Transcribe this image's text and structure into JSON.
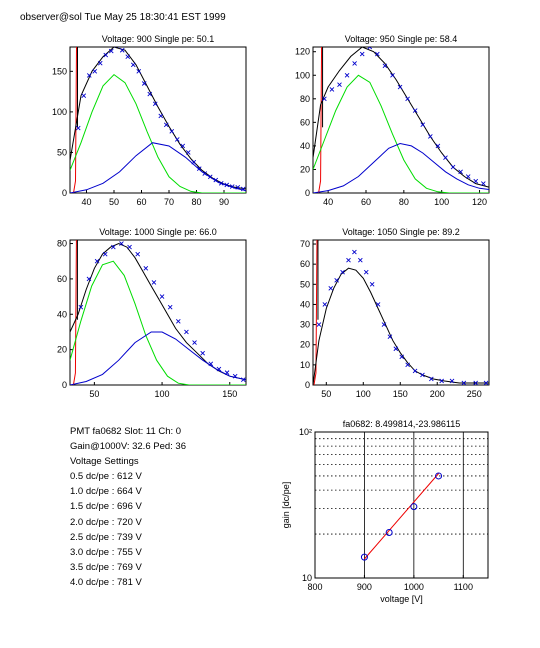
{
  "header": {
    "title": "observer@sol  Tue May 25 18:30:41 EST 1999"
  },
  "colors": {
    "fit": "#000000",
    "gauss": "#00dd00",
    "tail": "#0000cc",
    "ped": "#ee0000",
    "data": "#0000cc",
    "gainline": "#ee0000",
    "gainpoint": "#0000cc"
  },
  "info": {
    "pmt_line": "PMT fa0682 Slot: 11 Ch: 0",
    "gain_line": "Gain@1000V: 32.6 Ped: 36",
    "settings_title": "Voltage Settings",
    "settings": [
      "0.5 dc/pe : 612 V",
      "1.0 dc/pe : 664 V",
      "1.5 dc/pe : 696 V",
      "2.0 dc/pe : 720 V",
      "2.5 dc/pe : 739 V",
      "3.0 dc/pe : 755 V",
      "3.5 dc/pe : 769 V",
      "4.0 dc/pe : 781 V"
    ]
  },
  "chart_data": [
    {
      "type": "scatter",
      "title": "Voltage: 900 Single pe: 50.1",
      "xlim": [
        34,
        98
      ],
      "ylim": [
        0,
        180
      ],
      "xticks": [
        40,
        50,
        60,
        70,
        80,
        90
      ],
      "yticks": [
        0,
        50,
        100,
        150
      ],
      "pedestal": 36,
      "series": [
        {
          "role": "fit",
          "x": [
            34,
            38,
            42,
            46,
            50,
            54,
            58,
            62,
            66,
            70,
            74,
            78,
            82,
            86,
            90,
            94,
            98
          ],
          "y": [
            40,
            120,
            150,
            168,
            180,
            176,
            158,
            132,
            106,
            82,
            60,
            42,
            28,
            18,
            11,
            7,
            5
          ]
        },
        {
          "role": "gauss",
          "x": [
            34,
            38,
            42,
            46,
            50,
            54,
            58,
            62,
            66,
            70,
            74,
            78,
            82,
            86,
            90,
            98
          ],
          "y": [
            28,
            62,
            100,
            132,
            146,
            136,
            110,
            76,
            44,
            20,
            8,
            2,
            0,
            0,
            0,
            0
          ]
        },
        {
          "role": "tail",
          "x": [
            34,
            40,
            46,
            52,
            58,
            64,
            70,
            76,
            82,
            88,
            94,
            98
          ],
          "y": [
            0,
            4,
            12,
            26,
            46,
            62,
            58,
            44,
            26,
            13,
            6,
            3
          ]
        },
        {
          "role": "data",
          "x": [
            37,
            39,
            41,
            43,
            45,
            47,
            49,
            51,
            53,
            55,
            57,
            59,
            61,
            63,
            65,
            67,
            69,
            71,
            73,
            75,
            77,
            79,
            81,
            83,
            85,
            87,
            89,
            91,
            93,
            95,
            97
          ],
          "y": [
            80,
            120,
            145,
            150,
            160,
            170,
            175,
            182,
            176,
            168,
            158,
            150,
            135,
            122,
            110,
            95,
            84,
            76,
            66,
            58,
            50,
            38,
            30,
            24,
            20,
            16,
            12,
            10,
            8,
            7,
            5
          ]
        }
      ]
    },
    {
      "type": "scatter",
      "title": "Voltage: 950 Single pe: 58.4",
      "xlim": [
        32,
        125
      ],
      "ylim": [
        0,
        124
      ],
      "xticks": [
        40,
        60,
        80,
        100,
        120
      ],
      "yticks": [
        0,
        20,
        40,
        60,
        80,
        100,
        120
      ],
      "pedestal": 36,
      "series": [
        {
          "role": "fit",
          "x": [
            32,
            36,
            40,
            46,
            52,
            58,
            64,
            70,
            76,
            82,
            88,
            94,
            100,
            106,
            112,
            118,
            125
          ],
          "y": [
            30,
            75,
            90,
            104,
            116,
            124,
            120,
            110,
            96,
            80,
            64,
            48,
            34,
            22,
            14,
            8,
            5
          ]
        },
        {
          "role": "gauss",
          "x": [
            32,
            38,
            44,
            50,
            56,
            62,
            68,
            74,
            80,
            86,
            92,
            98,
            104,
            110,
            125
          ],
          "y": [
            20,
            45,
            70,
            90,
            100,
            94,
            74,
            50,
            28,
            12,
            4,
            1,
            0,
            0,
            0
          ]
        },
        {
          "role": "tail",
          "x": [
            32,
            40,
            48,
            56,
            64,
            72,
            78,
            84,
            90,
            96,
            102,
            108,
            114,
            120,
            125
          ],
          "y": [
            0,
            2,
            6,
            14,
            26,
            38,
            42,
            40,
            34,
            26,
            18,
            12,
            7,
            4,
            3
          ]
        },
        {
          "role": "data",
          "x": [
            38,
            42,
            46,
            50,
            54,
            58,
            62,
            66,
            70,
            74,
            78,
            82,
            86,
            90,
            94,
            98,
            102,
            106,
            110,
            114,
            118,
            122
          ],
          "y": [
            80,
            88,
            92,
            100,
            110,
            118,
            124,
            118,
            108,
            100,
            90,
            80,
            70,
            58,
            48,
            40,
            30,
            22,
            18,
            14,
            10,
            8
          ]
        }
      ]
    },
    {
      "type": "scatter",
      "title": "Voltage: 1000 Single pe: 66.0",
      "xlim": [
        32,
        162
      ],
      "ylim": [
        0,
        82
      ],
      "xticks": [
        50,
        100,
        150
      ],
      "yticks": [
        0,
        20,
        40,
        60,
        80
      ],
      "pedestal": 36,
      "series": [
        {
          "role": "fit",
          "x": [
            32,
            38,
            44,
            50,
            56,
            62,
            68,
            74,
            80,
            86,
            92,
            98,
            104,
            110,
            118,
            126,
            134,
            142,
            150,
            162
          ],
          "y": [
            30,
            40,
            54,
            66,
            74,
            78,
            80,
            78,
            72,
            64,
            56,
            48,
            40,
            32,
            24,
            18,
            12,
            8,
            5,
            3
          ]
        },
        {
          "role": "gauss",
          "x": [
            32,
            40,
            48,
            56,
            64,
            72,
            80,
            88,
            96,
            104,
            112,
            120,
            162
          ],
          "y": [
            14,
            36,
            56,
            68,
            70,
            62,
            46,
            28,
            14,
            5,
            1,
            0,
            0
          ]
        },
        {
          "role": "tail",
          "x": [
            32,
            44,
            56,
            68,
            80,
            92,
            100,
            110,
            120,
            130,
            140,
            150,
            162
          ],
          "y": [
            0,
            2,
            6,
            14,
            24,
            30,
            30,
            26,
            20,
            14,
            9,
            5,
            3
          ]
        },
        {
          "role": "data",
          "x": [
            40,
            46,
            52,
            58,
            64,
            70,
            76,
            82,
            88,
            94,
            100,
            106,
            112,
            118,
            124,
            130,
            136,
            142,
            148,
            154,
            160
          ],
          "y": [
            44,
            60,
            70,
            74,
            78,
            80,
            78,
            74,
            66,
            58,
            50,
            44,
            36,
            30,
            24,
            18,
            12,
            9,
            7,
            5,
            3
          ]
        }
      ]
    },
    {
      "type": "scatter",
      "title": "Voltage: 1050 Single pe: 89.2",
      "xlim": [
        32,
        270
      ],
      "ylim": [
        0,
        72
      ],
      "xticks": [
        50,
        100,
        150,
        200,
        250
      ],
      "yticks": [
        0,
        10,
        20,
        30,
        40,
        50,
        60,
        70
      ],
      "pedestal": 36,
      "series": [
        {
          "role": "fit",
          "x": [
            32,
            40,
            50,
            60,
            70,
            80,
            90,
            100,
            110,
            120,
            130,
            140,
            150,
            160,
            170,
            180,
            195,
            210,
            230,
            250,
            270
          ],
          "y": [
            0,
            22,
            38,
            48,
            55,
            58,
            57,
            53,
            46,
            38,
            30,
            22,
            16,
            11,
            7,
            5,
            3,
            2,
            1,
            1,
            1
          ]
        },
        {
          "role": "data",
          "x": [
            40,
            48,
            56,
            64,
            72,
            80,
            88,
            96,
            104,
            112,
            120,
            128,
            136,
            144,
            152,
            160,
            170,
            180,
            192,
            206,
            220,
            236,
            252,
            266
          ],
          "y": [
            30,
            40,
            48,
            52,
            56,
            62,
            66,
            62,
            56,
            50,
            40,
            30,
            24,
            18,
            14,
            10,
            7,
            5,
            3,
            2,
            2,
            1,
            1,
            1
          ]
        }
      ]
    },
    {
      "type": "scatter",
      "title": "fa0682: 8.499814,-23.986115",
      "xlabel": "voltage [V]",
      "ylabel": "gain [dc/pe]",
      "xlim": [
        800,
        1150
      ],
      "ylim": [
        10,
        100
      ],
      "yscale": "log",
      "xticks": [
        800,
        900,
        1000,
        1100
      ],
      "yticks": [
        10,
        100
      ],
      "ytick_labels": [
        "10",
        "10²"
      ],
      "grid": "vertical major, horizontal dotted minor",
      "series": [
        {
          "role": "gainline",
          "x": [
            900,
            1050
          ],
          "y": [
            13.5,
            52
          ]
        },
        {
          "role": "gainpoint",
          "x": [
            900,
            950,
            1000,
            1050
          ],
          "y": [
            13.9,
            20.5,
            30.8,
            50.0
          ]
        }
      ]
    }
  ]
}
